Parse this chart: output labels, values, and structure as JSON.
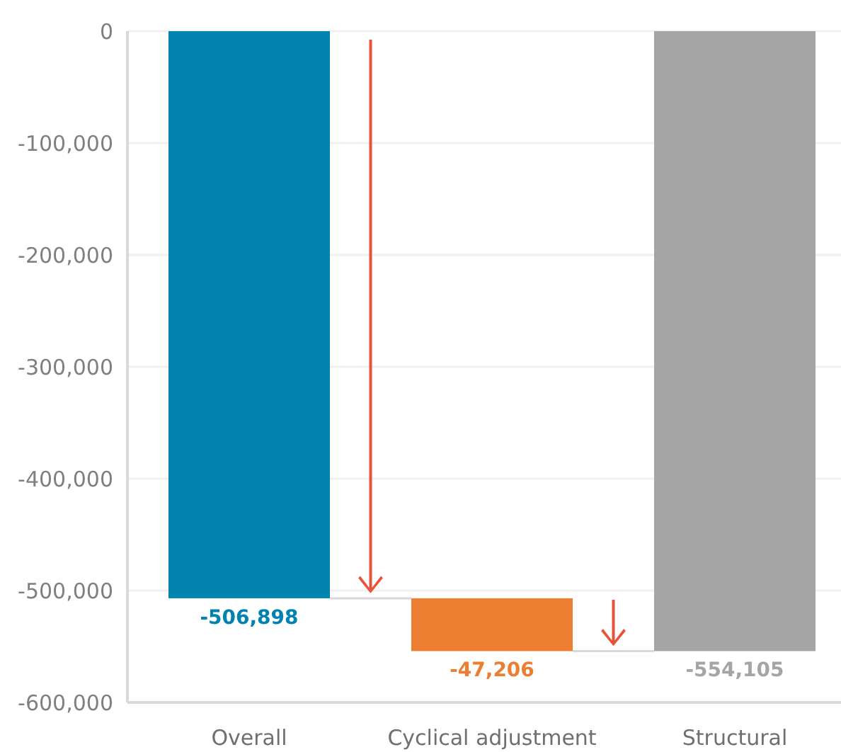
{
  "chart_data": {
    "type": "bar",
    "categories": [
      "Overall",
      "Cyclical adjustment",
      "Structural"
    ],
    "values": [
      -506898,
      -47206,
      -554105
    ],
    "base": [
      0,
      -506898,
      0
    ],
    "colors": [
      "#0083ae",
      "#ec7d31",
      "#a5a5a5"
    ],
    "ylim": [
      -600000,
      0
    ],
    "yticks": [
      {
        "value": 0,
        "label": "0"
      },
      {
        "value": -100000,
        "label": "-100,000"
      },
      {
        "value": -200000,
        "label": "-200,000"
      },
      {
        "value": -300000,
        "label": "-300,000"
      },
      {
        "value": -400000,
        "label": "-400,000"
      },
      {
        "value": -500000,
        "label": "-500,000"
      },
      {
        "value": -600000,
        "label": "-600,000"
      }
    ],
    "value_labels": [
      "-506,898",
      "-47,206",
      "-554,105"
    ],
    "grid": "y"
  }
}
